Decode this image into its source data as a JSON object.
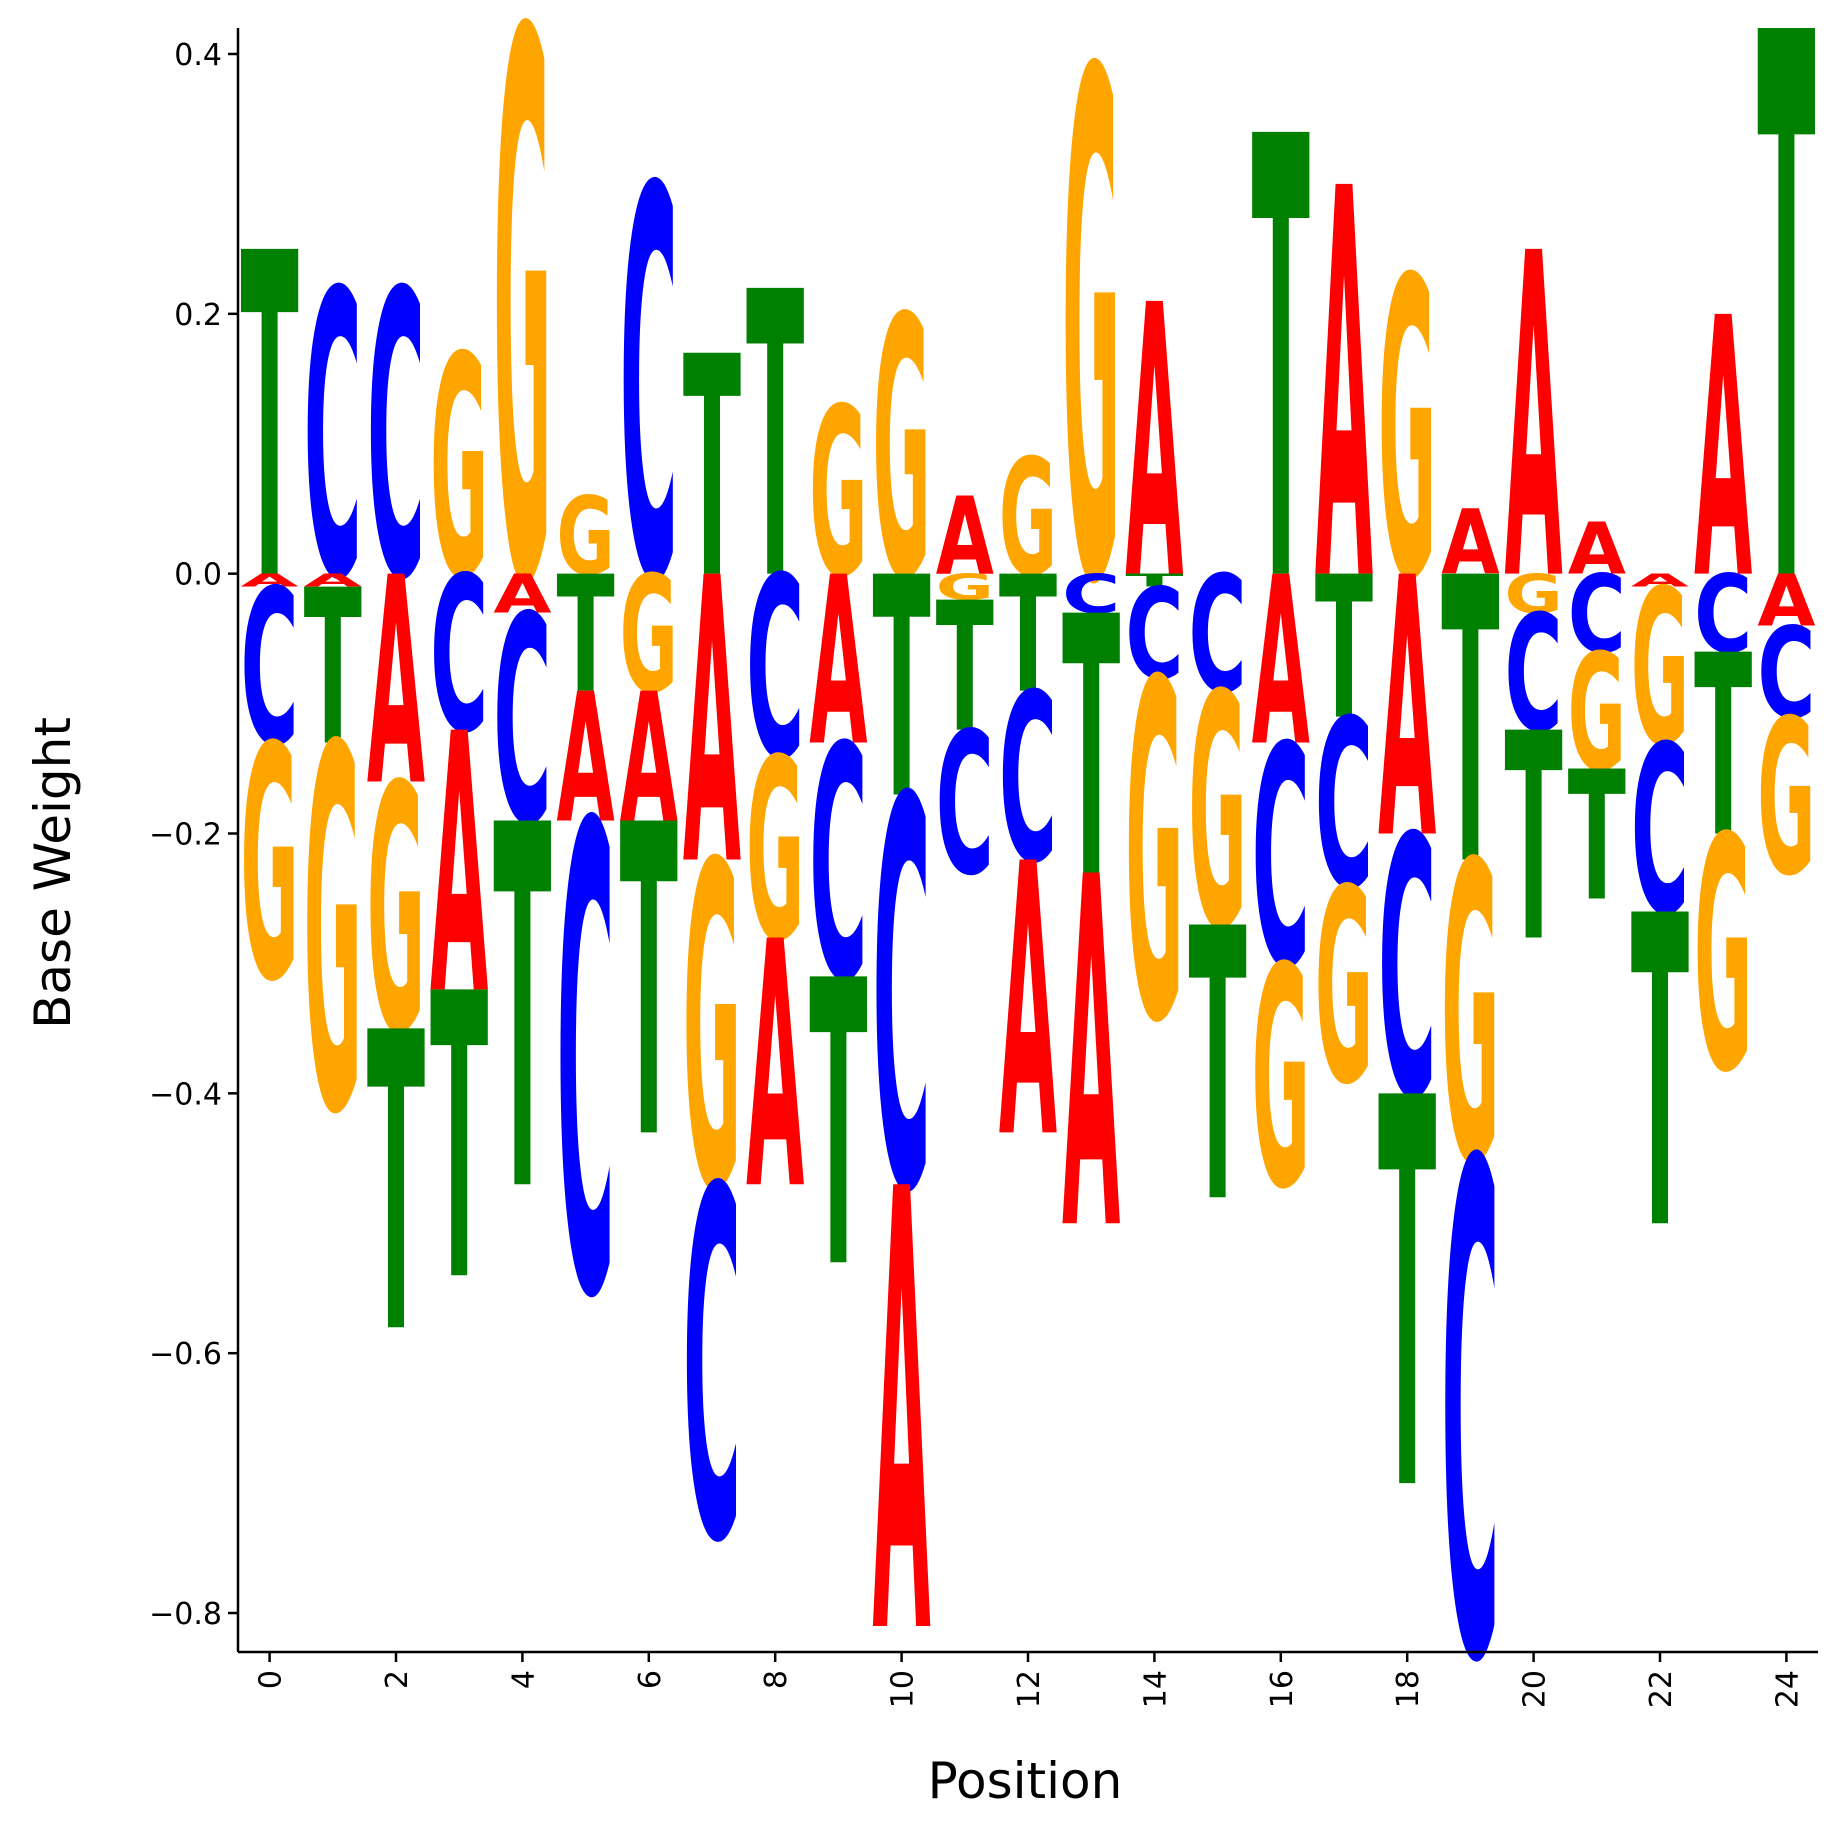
{
  "chart_data": {
    "type": "sequence-logo",
    "title": "",
    "xlabel": "Position",
    "ylabel": "Base Weight",
    "xlim": [
      -0.5,
      24.5
    ],
    "ylim": [
      -0.83,
      0.42
    ],
    "xticks": [
      0,
      2,
      4,
      6,
      8,
      10,
      12,
      14,
      16,
      18,
      20,
      22,
      24
    ],
    "yticks": [
      -0.8,
      -0.6,
      -0.4,
      -0.2,
      0.0,
      0.2,
      0.4
    ],
    "ytick_labels": [
      "−0.8",
      "−0.6",
      "−0.4",
      "−0.2",
      "0.0",
      "0.2",
      "0.4"
    ],
    "grid": false,
    "colors": {
      "A": "#ff0000",
      "C": "#0000ff",
      "G": "#ffa500",
      "T": "#008000"
    },
    "positions": [
      {
        "pos": 0,
        "A": -0.01,
        "C": -0.12,
        "G": -0.18,
        "T": 0.25
      },
      {
        "pos": 1,
        "A": -0.01,
        "C": 0.22,
        "G": -0.28,
        "T": -0.12
      },
      {
        "pos": 2,
        "A": -0.16,
        "C": 0.22,
        "G": -0.19,
        "T": -0.23
      },
      {
        "pos": 3,
        "A": -0.2,
        "C": -0.12,
        "G": 0.17,
        "T": -0.22
      },
      {
        "pos": 4,
        "A": -0.03,
        "C": -0.16,
        "G": 0.42,
        "T": -0.28
      },
      {
        "pos": 5,
        "A": -0.1,
        "C": -0.36,
        "G": 0.06,
        "T": -0.09
      },
      {
        "pos": 6,
        "A": -0.1,
        "C": 0.3,
        "G": -0.09,
        "T": -0.24
      },
      {
        "pos": 7,
        "A": -0.22,
        "C": -0.27,
        "G": -0.25,
        "T": 0.17
      },
      {
        "pos": 8,
        "A": -0.19,
        "C": -0.14,
        "G": -0.14,
        "T": 0.22
      },
      {
        "pos": 9,
        "A": -0.13,
        "C": -0.18,
        "G": 0.13,
        "T": -0.22
      },
      {
        "pos": 10,
        "A": -0.34,
        "C": -0.3,
        "G": 0.2,
        "T": -0.17
      },
      {
        "pos": 11,
        "A": 0.06,
        "C": -0.11,
        "G": -0.02,
        "T": -0.1
      },
      {
        "pos": 12,
        "A": -0.21,
        "C": -0.13,
        "G": 0.09,
        "T": -0.09
      },
      {
        "pos": 13,
        "A": -0.27,
        "C": -0.03,
        "G": 0.39,
        "T": -0.2
      },
      {
        "pos": 14,
        "A": 0.21,
        "C": -0.07,
        "G": -0.26,
        "T": -0.01
      },
      {
        "pos": 15,
        "A": 0.0,
        "C": -0.09,
        "G": -0.18,
        "T": -0.21
      },
      {
        "pos": 16,
        "A": -0.13,
        "C": -0.17,
        "G": -0.17,
        "T": 0.34
      },
      {
        "pos": 17,
        "A": 0.3,
        "C": -0.13,
        "G": -0.15,
        "T": -0.11
      },
      {
        "pos": 18,
        "A": -0.2,
        "C": -0.2,
        "G": 0.23,
        "T": -0.3
      },
      {
        "pos": 19,
        "A": 0.05,
        "C": -0.38,
        "G": -0.23,
        "T": -0.22
      },
      {
        "pos": 20,
        "A": 0.25,
        "C": -0.09,
        "G": -0.03,
        "T": -0.16
      },
      {
        "pos": 21,
        "A": 0.04,
        "C": -0.06,
        "G": -0.09,
        "T": -0.1
      },
      {
        "pos": 22,
        "A": -0.01,
        "C": -0.13,
        "G": -0.12,
        "T": -0.24
      },
      {
        "pos": 23,
        "A": 0.2,
        "C": -0.06,
        "G": -0.18,
        "T": -0.14
      },
      {
        "pos": 24,
        "A": -0.04,
        "C": -0.07,
        "G": -0.12,
        "T": 0.42
      }
    ]
  }
}
